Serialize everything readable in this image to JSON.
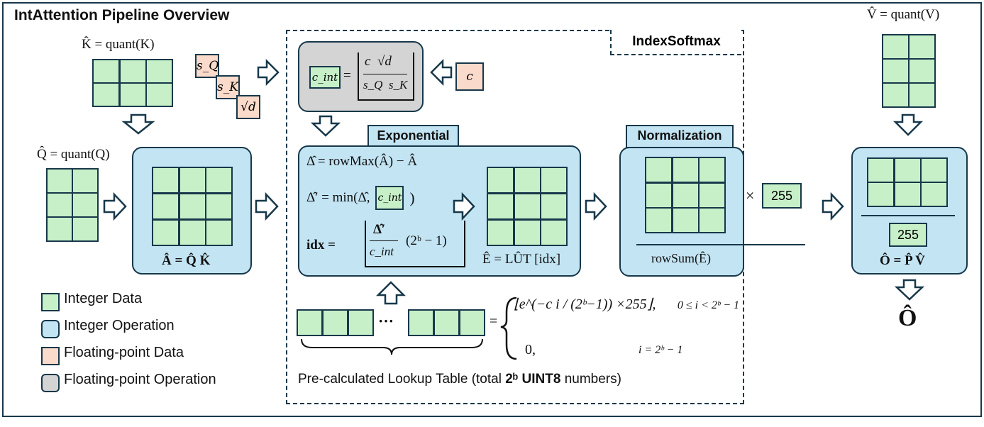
{
  "title": "IntAttention Pipeline Overview",
  "index_softmax_label": "IndexSoftmax",
  "exponential_label": "Exponential",
  "normalization_label": "Normalization",
  "k_label": "K̂ = quant(K)",
  "q_label": "Q̂ = quant(Q)",
  "v_label": "V̂ = quant(V)",
  "scales": {
    "sq": "s_Q",
    "sk": "s_K",
    "sqrtd": "√d",
    "c": "c"
  },
  "c_int_formula": {
    "lhs": "c_int",
    "eq": "=",
    "num": "c  √d",
    "den": "s_Q  s_K"
  },
  "a_label": "Â = Q̂ K̂",
  "exp_lines": {
    "line1": "Δ̂ = rowMax(Â) − Â",
    "line2_pre": "Δ̂′ = min(Δ̂,",
    "line2_box": "c_int",
    "line2_post": ")",
    "line3_pre": "idx =",
    "line3_num": "Δ̂′",
    "line3_den": "c_int",
    "line3_post": "(2ᵇ − 1)"
  },
  "e_label": "Ê = LÛT [idx]",
  "norm": {
    "times": "×",
    "value": "255",
    "denominator": "rowSum(Ê)"
  },
  "output": {
    "value": "255",
    "label": "Ô = P̂ V̂",
    "result": "Ô"
  },
  "legend": [
    {
      "label": "Integer Data",
      "color": "#c7f0c9"
    },
    {
      "label": "Integer Operation",
      "color": "#c3e4f3"
    },
    {
      "label": "Floating-point Data",
      "color": "#fadbcb"
    },
    {
      "label": "Floating-point Operation",
      "color": "#d4d4d4"
    }
  ],
  "lut": {
    "ellipsis": "···",
    "eq": "=",
    "case1_expr": "⌊e^(−c i / (2ᵇ−1)) ×255⌋,",
    "case1_cond": "0 ≤ i < 2ᵇ − 1",
    "case2_expr": "0,",
    "case2_cond": "i = 2ᵇ − 1",
    "caption_pre": "Pre-calculated Lookup Table  (total",
    "caption_bold1": "2ᵇ",
    "caption_bold2": "UINT8",
    "caption_post": "numbers)"
  },
  "colors": {
    "integer_data": "#c7f0c9",
    "integer_op": "#c3e4f3",
    "float_data": "#fadbcb",
    "float_op": "#d4d4d4",
    "stroke": "#17384a"
  }
}
